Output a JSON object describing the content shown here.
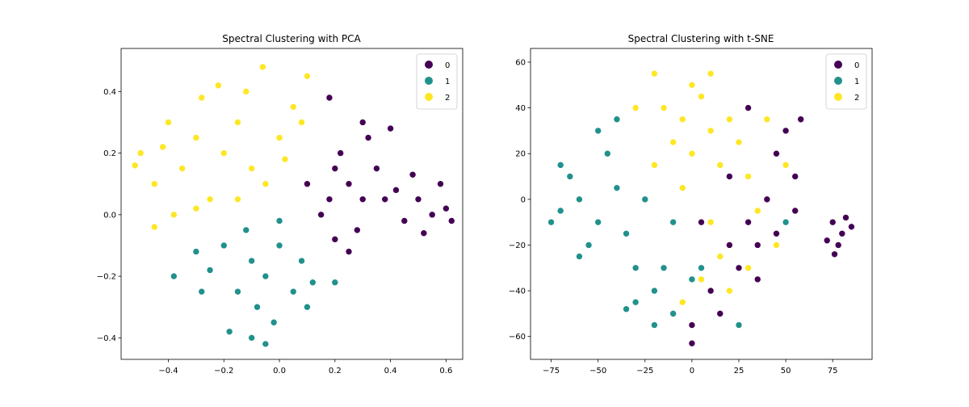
{
  "palette": {
    "0": "#440154",
    "1": "#21918c",
    "2": "#fde725"
  },
  "chart_data": [
    {
      "type": "scatter",
      "title": "Spectral Clustering with PCA",
      "xlabel": "",
      "ylabel": "",
      "xlim": [
        -0.57,
        0.66
      ],
      "ylim": [
        -0.47,
        0.54
      ],
      "xticks": [
        -0.4,
        -0.2,
        0.0,
        0.2,
        0.4,
        0.6
      ],
      "xtick_labels": [
        "−0.4",
        "−0.2",
        "0.0",
        "0.2",
        "0.4",
        "0.6"
      ],
      "yticks": [
        -0.4,
        -0.2,
        0.0,
        0.2,
        0.4
      ],
      "ytick_labels": [
        "−0.4",
        "−0.2",
        "0.0",
        "0.2",
        "0.4"
      ],
      "grid": false,
      "legend": {
        "placement": "top-right",
        "entries": [
          "0",
          "1",
          "2"
        ]
      },
      "series": [
        {
          "name": "0",
          "points": [
            [
              0.2,
              0.15
            ],
            [
              0.25,
              0.1
            ],
            [
              0.18,
              0.05
            ],
            [
              0.3,
              0.05
            ],
            [
              0.22,
              0.2
            ],
            [
              0.15,
              0.0
            ],
            [
              0.28,
              -0.05
            ],
            [
              0.1,
              0.1
            ],
            [
              0.35,
              0.15
            ],
            [
              0.2,
              -0.08
            ],
            [
              0.5,
              0.05
            ],
            [
              0.55,
              0.0
            ],
            [
              0.45,
              -0.02
            ],
            [
              0.6,
              0.02
            ],
            [
              0.52,
              -0.06
            ],
            [
              0.42,
              0.08
            ],
            [
              0.58,
              0.1
            ],
            [
              0.48,
              0.13
            ],
            [
              0.62,
              -0.02
            ],
            [
              0.38,
              0.05
            ],
            [
              0.25,
              -0.12
            ],
            [
              0.18,
              0.38
            ],
            [
              0.3,
              0.3
            ],
            [
              0.32,
              0.25
            ],
            [
              0.4,
              0.28
            ]
          ]
        },
        {
          "name": "1",
          "points": [
            [
              -0.1,
              -0.15
            ],
            [
              -0.05,
              -0.2
            ],
            [
              0.0,
              -0.1
            ],
            [
              -0.15,
              -0.25
            ],
            [
              -0.08,
              -0.3
            ],
            [
              0.05,
              -0.25
            ],
            [
              -0.02,
              -0.35
            ],
            [
              -0.2,
              -0.1
            ],
            [
              0.08,
              -0.15
            ],
            [
              -0.12,
              -0.05
            ],
            [
              -0.25,
              -0.18
            ],
            [
              0.1,
              -0.3
            ],
            [
              -0.18,
              -0.38
            ],
            [
              -0.05,
              -0.42
            ],
            [
              0.12,
              -0.22
            ],
            [
              -0.3,
              -0.12
            ],
            [
              -0.38,
              -0.2
            ],
            [
              0.2,
              -0.22
            ],
            [
              -0.28,
              -0.25
            ],
            [
              0.0,
              -0.02
            ],
            [
              -0.1,
              -0.4
            ]
          ]
        },
        {
          "name": "2",
          "points": [
            [
              -0.2,
              0.2
            ],
            [
              -0.1,
              0.15
            ],
            [
              -0.3,
              0.25
            ],
            [
              -0.15,
              0.3
            ],
            [
              -0.05,
              0.1
            ],
            [
              -0.25,
              0.05
            ],
            [
              0.0,
              0.25
            ],
            [
              -0.35,
              0.15
            ],
            [
              -0.12,
              0.4
            ],
            [
              -0.4,
              0.3
            ],
            [
              -0.45,
              0.1
            ],
            [
              -0.5,
              0.2
            ],
            [
              -0.22,
              0.42
            ],
            [
              0.05,
              0.35
            ],
            [
              0.1,
              0.45
            ],
            [
              -0.06,
              0.48
            ],
            [
              0.02,
              0.18
            ],
            [
              -0.3,
              0.02
            ],
            [
              -0.38,
              0.0
            ],
            [
              -0.45,
              -0.04
            ],
            [
              -0.52,
              0.16
            ],
            [
              -0.15,
              0.05
            ],
            [
              0.08,
              0.3
            ],
            [
              -0.28,
              0.38
            ],
            [
              -0.42,
              0.22
            ]
          ]
        }
      ]
    },
    {
      "type": "scatter",
      "title": "Spectral Clustering with t-SNE",
      "xlabel": "",
      "ylabel": "",
      "xlim": [
        -86,
        96
      ],
      "ylim": [
        -70,
        66
      ],
      "xticks": [
        -75,
        -50,
        -25,
        0,
        25,
        50,
        75
      ],
      "xtick_labels": [
        "−75",
        "−50",
        "−25",
        "0",
        "25",
        "50",
        "75"
      ],
      "yticks": [
        -60,
        -40,
        -20,
        0,
        20,
        40,
        60
      ],
      "ytick_labels": [
        "−60",
        "−40",
        "−20",
        "0",
        "20",
        "40",
        "60"
      ],
      "grid": false,
      "legend": {
        "placement": "top-right",
        "entries": [
          "0",
          "1",
          "2"
        ]
      },
      "series": [
        {
          "name": "0",
          "points": [
            [
              75,
              -10
            ],
            [
              80,
              -15
            ],
            [
              78,
              -20
            ],
            [
              85,
              -12
            ],
            [
              72,
              -18
            ],
            [
              82,
              -8
            ],
            [
              76,
              -24
            ],
            [
              30,
              -10
            ],
            [
              35,
              -20
            ],
            [
              25,
              -30
            ],
            [
              40,
              0
            ],
            [
              45,
              20
            ],
            [
              50,
              30
            ],
            [
              55,
              10
            ],
            [
              20,
              -20
            ],
            [
              10,
              -40
            ],
            [
              0,
              -55
            ],
            [
              15,
              -50
            ],
            [
              35,
              -35
            ],
            [
              5,
              -10
            ],
            [
              45,
              -15
            ],
            [
              55,
              -5
            ],
            [
              58,
              35
            ],
            [
              20,
              10
            ],
            [
              30,
              40
            ],
            [
              0,
              -63
            ]
          ]
        },
        {
          "name": "1",
          "points": [
            [
              -60,
              0
            ],
            [
              -50,
              -10
            ],
            [
              -40,
              5
            ],
            [
              -70,
              -5
            ],
            [
              -55,
              -20
            ],
            [
              -45,
              20
            ],
            [
              -30,
              -30
            ],
            [
              -20,
              -40
            ],
            [
              -10,
              -50
            ],
            [
              -65,
              10
            ],
            [
              -35,
              -15
            ],
            [
              -25,
              0
            ],
            [
              -15,
              -30
            ],
            [
              -50,
              30
            ],
            [
              -40,
              35
            ],
            [
              -75,
              -10
            ],
            [
              -70,
              15
            ],
            [
              -60,
              -25
            ],
            [
              -30,
              -45
            ],
            [
              -20,
              -55
            ],
            [
              0,
              -35
            ],
            [
              -10,
              -10
            ],
            [
              5,
              -30
            ],
            [
              25,
              -55
            ],
            [
              50,
              -10
            ],
            [
              -35,
              -48
            ]
          ]
        },
        {
          "name": "2",
          "points": [
            [
              0,
              20
            ],
            [
              10,
              30
            ],
            [
              -5,
              35
            ],
            [
              15,
              15
            ],
            [
              5,
              45
            ],
            [
              -10,
              25
            ],
            [
              20,
              35
            ],
            [
              25,
              25
            ],
            [
              -15,
              40
            ],
            [
              0,
              50
            ],
            [
              10,
              55
            ],
            [
              -20,
              55
            ],
            [
              30,
              10
            ],
            [
              40,
              35
            ],
            [
              -5,
              5
            ],
            [
              10,
              -10
            ],
            [
              15,
              -25
            ],
            [
              20,
              -40
            ],
            [
              5,
              -35
            ],
            [
              -5,
              -45
            ],
            [
              35,
              -5
            ],
            [
              -20,
              15
            ],
            [
              -30,
              40
            ],
            [
              45,
              -20
            ],
            [
              50,
              15
            ],
            [
              30,
              -30
            ]
          ]
        }
      ]
    }
  ]
}
